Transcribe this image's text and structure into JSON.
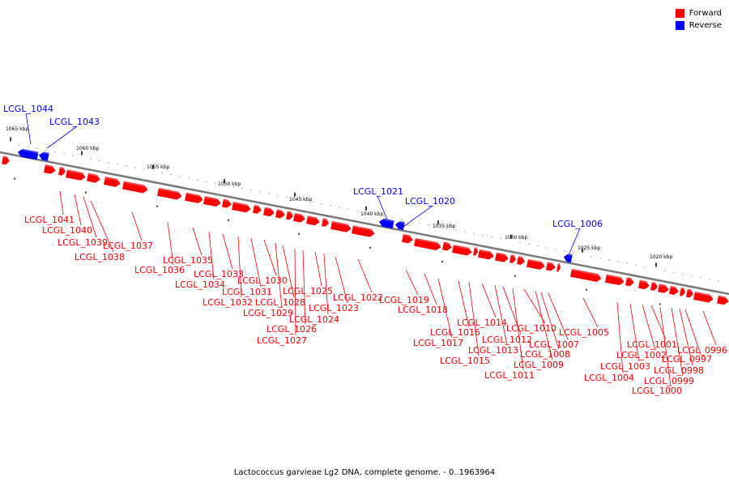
{
  "legend": {
    "forward_label": "Forward",
    "reverse_label": "Reverse",
    "forward_color": "#ff0000",
    "reverse_color": "#0000ff"
  },
  "caption": "Lactococcus garvieae Lg2 DNA, complete genome. - 0..1963964",
  "axis_ticks": [
    "1065 kbp",
    "1060 kbp",
    "1055 kbp",
    "1050 kbp",
    "1045 kbp",
    "1040 kbp",
    "1035 kbp",
    "1030 kbp",
    "1025 kbp",
    "1020 kbp"
  ],
  "reverse_genes": [
    "LCGL_1044",
    "LCGL_1043",
    "LCGL_1021",
    "LCGL_1020",
    "LCGL_1006"
  ],
  "forward_genes": [
    "LCGL_1041",
    "LCGL_1040",
    "LCGL_1039",
    "LCGL_1038",
    "LCGL_1037",
    "LCGL_1036",
    "LCGL_1035",
    "LCGL_1034",
    "LCGL_1033",
    "LCGL_1032",
    "LCGL_1031",
    "LCGL_1030",
    "LCGL_1029",
    "LCGL_1028",
    "LCGL_1027",
    "LCGL_1026",
    "LCGL_1025",
    "LCGL_1024",
    "LCGL_1023",
    "LCGL_1022",
    "LCGL_1019",
    "LCGL_1018",
    "LCGL_1017",
    "LCGL_1016",
    "LCGL_1015",
    "LCGL_1014",
    "LCGL_1013",
    "LCGL_1012",
    "LCGL_1011",
    "LCGL_1010",
    "LCGL_1009",
    "LCGL_1008",
    "LCGL_1007",
    "LCGL_1005",
    "LCGL_1004",
    "LCGL_1003",
    "LCGL_1002",
    "LCGL_1001",
    "LCGL_1000",
    "LCGL_0999",
    "LCGL_0998",
    "LCGL_0997",
    "LCGL_0996"
  ]
}
